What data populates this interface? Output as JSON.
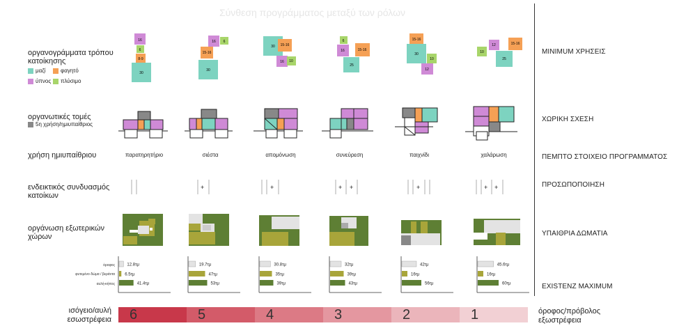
{
  "title": "Σύνθεση προγράμματος μεταξύ των ρόλων",
  "colors": {
    "together": "#7dd3c0",
    "food": "#f5a055",
    "sleep": "#cf8ad6",
    "wash": "#a8d56a",
    "semi_outdoor": "#888888",
    "roof": "#e3e3e3",
    "green_roof": "#a8a53a",
    "yard": "#5e7f34"
  },
  "left_labels": {
    "org_charts": "οργανογράμματα τρόπου κατοίκησης",
    "sections": "οργανωτικές τομές",
    "sections_note": "5η χρήση/ημιυπαίθριος",
    "semi_outdoor_use": "χρήση ημιυπαίθριου",
    "combination": "ενδεικτικός συνδυασμός κατοίκων",
    "exterior": "οργάνωση εξωτερικών χώρων"
  },
  "legend": {
    "together": "μαζί",
    "food": "φαγητό",
    "sleep": "ύπνος",
    "wash": "πλύσιμο"
  },
  "right_labels": {
    "r1": "MINIMUM ΧΡΗΣΕΙΣ",
    "r2": "ΧΩΡΙΚΗ ΣΧΕΣΗ",
    "r3": "ΠΕΜΠΤΟ ΣΤΟΙΧΕΙΟ ΠΡΟΓΡΑΜΜΑΤΟΣ",
    "r4": "ΠΡΟΣΩΠΟΠΟΙΗΣΗ",
    "r5": "ΥΠΑΙΘΡΙΑ ΔΩΜΑΤΙΑ",
    "r6": "EXISTENZ MAXIMUM"
  },
  "uses": [
    "παρατηρητήριο",
    "σιέστα",
    "απομόνωση",
    "συνεύρεση",
    "παιχνίδι",
    "χαλάρωση"
  ],
  "org_values": [
    [
      "16",
      "6",
      "8-9",
      "30"
    ],
    [
      "16",
      "6",
      "15-16",
      "30"
    ],
    [
      "30",
      "15-16",
      "16",
      "10"
    ],
    [
      "6",
      "16",
      "15-16",
      "25"
    ],
    [
      "15-16",
      "30",
      "10",
      "12"
    ],
    [
      "10",
      "12",
      "15-16",
      "25"
    ]
  ],
  "plus_sign": "+",
  "bar_labels": [
    "όροφος",
    "φυτεμένο δώμα / βεράντα",
    "αυλή-κήπος"
  ],
  "chart_data": {
    "type": "bar",
    "categories": [
      "παρατηρητήριο",
      "σιέστα",
      "απομόνωση",
      "συνεύρεση",
      "παιχνίδι",
      "χαλάρωση"
    ],
    "series": [
      {
        "name": "όροφος",
        "values": [
          12.8,
          19.7,
          30.8,
          32,
          42,
          45.6
        ],
        "labels": [
          "12.8τμ",
          "19.7τμ",
          "30.8τμ",
          "32τμ",
          "42τμ",
          "45.6τμ"
        ]
      },
      {
        "name": "φυτεμένο δώμα / βεράντα",
        "values": [
          6.5,
          47,
          35,
          39,
          16,
          16
        ],
        "labels": [
          "6.5τμ",
          "47τμ",
          "35τμ",
          "39τμ",
          "16τμ",
          "16τμ"
        ]
      },
      {
        "name": "αυλή-κήπος",
        "values": [
          41.4,
          53,
          39,
          43,
          56,
          60
        ],
        "labels": [
          "41.4τμ",
          "53τμ",
          "39τμ",
          "43τμ",
          "56τμ",
          "60τμ"
        ]
      }
    ]
  },
  "gradient": {
    "left_label": "ισόγειο/αυλή εσωστρέφεια",
    "right_label": "όροφος/πρόβολος εξωστρέφεια",
    "steps": [
      "6",
      "5",
      "4",
      "3",
      "2",
      "1"
    ],
    "colors": [
      "#c8384a",
      "#d35b69",
      "#dc7a85",
      "#e497a0",
      "#ebb5bb",
      "#f2d0d4"
    ]
  }
}
